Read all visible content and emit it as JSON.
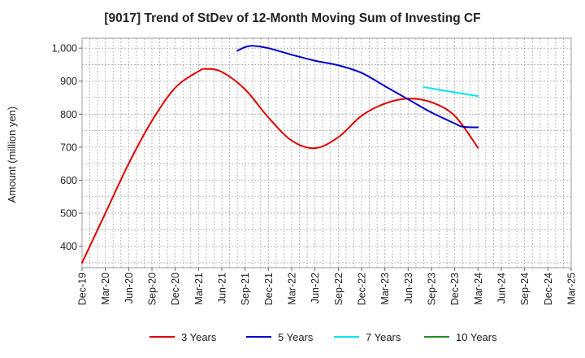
{
  "chart_data": {
    "type": "line",
    "title": "[9017]  Trend of StDev of 12-Month Moving Sum of Investing CF",
    "xlabel": "",
    "ylabel": "Amount (million yen)",
    "x_ticks": [
      "Dec-19",
      "Mar-20",
      "Jun-20",
      "Sep-20",
      "Dec-20",
      "Mar-21",
      "Jun-21",
      "Sep-21",
      "Dec-21",
      "Mar-22",
      "Jun-22",
      "Sep-22",
      "Dec-22",
      "Mar-23",
      "Jun-23",
      "Sep-23",
      "Dec-23",
      "Mar-24",
      "Jun-24",
      "Sep-24",
      "Dec-24",
      "Mar-25"
    ],
    "y_ticks": [
      400,
      500,
      600,
      700,
      800,
      900,
      1000
    ],
    "y_tick_labels": [
      "400",
      "500",
      "600",
      "700",
      "800",
      "900",
      "1,000"
    ],
    "ylim": [
      335,
      1030
    ],
    "grid": true,
    "legend_position": "bottom",
    "series": [
      {
        "name": "3 Years",
        "color": "#e00000",
        "points": [
          [
            "Dec-19",
            350
          ],
          [
            "Mar-20",
            500
          ],
          [
            "Jun-20",
            650
          ],
          [
            "Sep-20",
            780
          ],
          [
            "Dec-20",
            880
          ],
          [
            "Mar-21",
            930
          ],
          [
            "Apr-21",
            937
          ],
          [
            "Jun-21",
            928
          ],
          [
            "Sep-21",
            875
          ],
          [
            "Dec-21",
            790
          ],
          [
            "Mar-22",
            720
          ],
          [
            "Jun-22",
            697
          ],
          [
            "Sep-22",
            730
          ],
          [
            "Dec-22",
            795
          ],
          [
            "Mar-23",
            832
          ],
          [
            "Jun-23",
            847
          ],
          [
            "Sep-23",
            836
          ],
          [
            "Dec-23",
            795
          ],
          [
            "Mar-24",
            698
          ]
        ]
      },
      {
        "name": "5 Years",
        "color": "#0000cc",
        "points": [
          [
            "Aug-21",
            992
          ],
          [
            "Sep-21",
            1003
          ],
          [
            "Oct-21",
            1007
          ],
          [
            "Dec-21",
            1000
          ],
          [
            "Mar-22",
            980
          ],
          [
            "Jun-22",
            962
          ],
          [
            "Sep-22",
            948
          ],
          [
            "Dec-22",
            925
          ],
          [
            "Mar-23",
            885
          ],
          [
            "Jun-23",
            845
          ],
          [
            "Sep-23",
            805
          ],
          [
            "Dec-23",
            772
          ],
          [
            "Jan-24",
            762
          ],
          [
            "Mar-24",
            760
          ]
        ]
      },
      {
        "name": "7 Years",
        "color": "#00e5ee",
        "points": [
          [
            "Aug-23",
            882
          ],
          [
            "Dec-23",
            866
          ],
          [
            "Mar-24",
            855
          ]
        ]
      },
      {
        "name": "10 Years",
        "color": "#228b22",
        "points": []
      }
    ]
  }
}
